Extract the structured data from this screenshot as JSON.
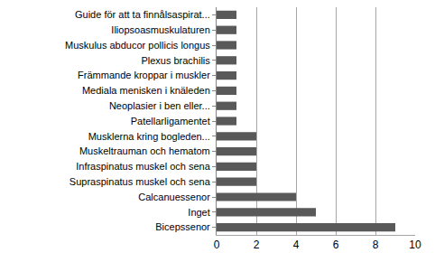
{
  "chart_data": {
    "type": "bar",
    "orientation": "horizontal",
    "categories": [
      "Guide för att ta finnålsaspirat...",
      "Iliopsoasmuskulaturen",
      "Muskulus abducor pollicis longus",
      "Plexus brachilis",
      "Främmande kroppar i muskler",
      "Mediala menisken i knäleden",
      "Neoplasier i ben eller...",
      "Patellarligamentet",
      "Musklerna kring bogleden...",
      "Muskeltrauman och hematom",
      "Infraspinatus muskel och sena",
      "Supraspinatus muskel och sena",
      "Calcanuessenor",
      "Inget",
      "Bicepssenor"
    ],
    "values": [
      1,
      1,
      1,
      1,
      1,
      1,
      1,
      1,
      2,
      2,
      2,
      2,
      4,
      5,
      9
    ],
    "color": "#595959",
    "xlim": [
      0,
      10
    ],
    "xticks": [
      0,
      2,
      4,
      6,
      8,
      10
    ],
    "grid": true
  }
}
